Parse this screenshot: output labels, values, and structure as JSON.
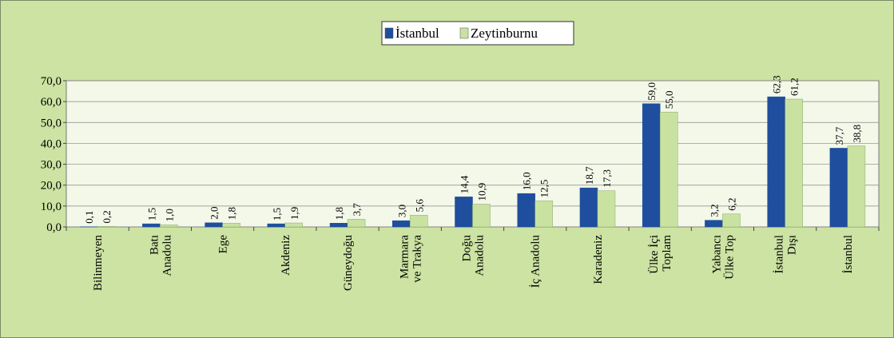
{
  "chart_data": {
    "type": "bar",
    "categories": [
      [
        "Bilinmeyen"
      ],
      [
        "Batı",
        "Anadolu"
      ],
      [
        "Ege"
      ],
      [
        "Akdeniz"
      ],
      [
        "Güneydoğu"
      ],
      [
        "Marmara",
        "ve Trakya"
      ],
      [
        "Doğu",
        "Anadolu"
      ],
      [
        "İç Anadolu"
      ],
      [
        "Karadeniz"
      ],
      [
        "Ülke İçi",
        "Toplam"
      ],
      [
        "Yabancı",
        "Ülke Top"
      ],
      [
        "İstanbul",
        "Dışı"
      ],
      [
        "İstanbul"
      ]
    ],
    "series": [
      {
        "name": "İstanbul",
        "color": "#1f4e9e",
        "values": [
          0.1,
          1.5,
          2.0,
          1.5,
          1.8,
          3.0,
          14.4,
          16.0,
          18.7,
          59.0,
          3.2,
          62.3,
          37.7
        ],
        "value_labels": [
          "0,1",
          "1,5",
          "2,0",
          "1,5",
          "1,8",
          "3,0",
          "14,4",
          "16,0",
          "18,7",
          "59,0",
          "3,2",
          "62,3",
          "37,7"
        ]
      },
      {
        "name": "Zeytinburnu",
        "color": "#c9e2a2",
        "values": [
          0.2,
          1.0,
          1.8,
          1.9,
          3.7,
          5.6,
          10.9,
          12.5,
          17.3,
          55.0,
          6.2,
          61.2,
          38.8
        ],
        "value_labels": [
          "0,2",
          "1,0",
          "1,8",
          "1,9",
          "3,7",
          "5,6",
          "10,9",
          "12,5",
          "17,3",
          "55,0",
          "6,2",
          "61,2",
          "38,8"
        ]
      }
    ],
    "ylim": [
      0,
      70
    ],
    "yticks": [
      {
        "value": 0,
        "label": "0,0"
      },
      {
        "value": 10,
        "label": "10,0"
      },
      {
        "value": 20,
        "label": "20,0"
      },
      {
        "value": 30,
        "label": "30,0"
      },
      {
        "value": 40,
        "label": "40,0"
      },
      {
        "value": 50,
        "label": "50,0"
      },
      {
        "value": 60,
        "label": "60,0"
      },
      {
        "value": 70,
        "label": "70,0"
      }
    ],
    "grid": true,
    "legend": "top"
  }
}
